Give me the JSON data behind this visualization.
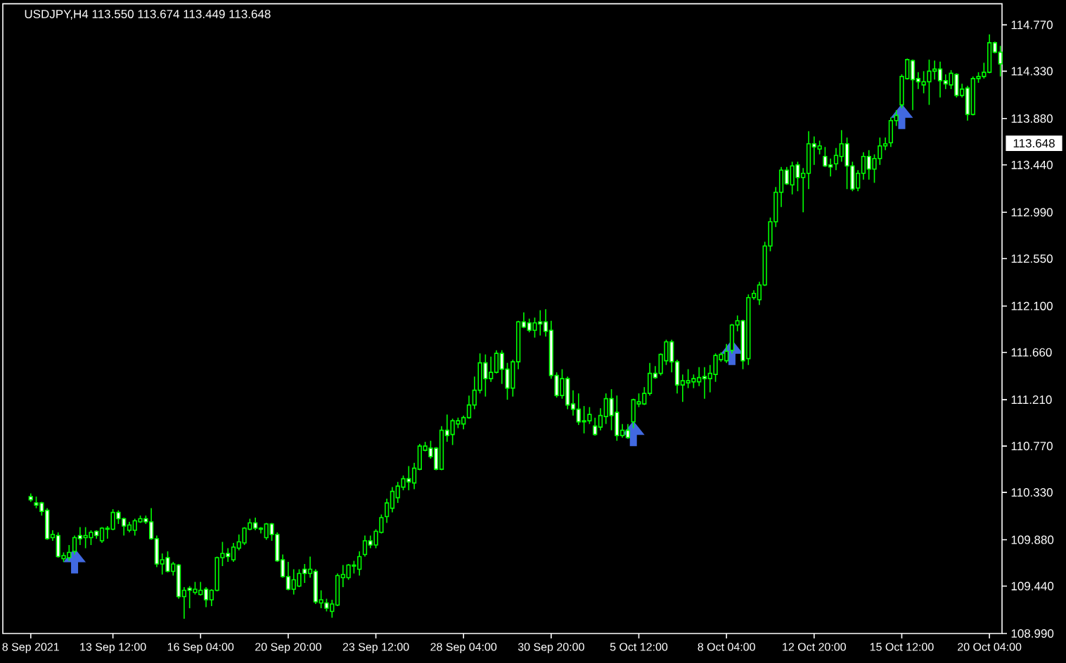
{
  "chart_data": {
    "type": "candlestick",
    "title": "USDJPY,H4 113.550 113.674 113.449 113.648",
    "color": "#00ff00",
    "categories": [
      "8 Sep 2021",
      null,
      null,
      null,
      null,
      null,
      null,
      null,
      null,
      null,
      null,
      null,
      null,
      null,
      null,
      "13 Sep 12:00",
      null,
      null,
      null,
      null,
      null,
      null,
      null,
      null,
      null,
      null,
      null,
      null,
      null,
      null,
      null,
      "16 Sep 04:00",
      null,
      null,
      null,
      null,
      null,
      null,
      null,
      null,
      null,
      null,
      null,
      null,
      null,
      null,
      null,
      "20 Sep 20:00",
      null,
      null,
      null,
      null,
      null,
      null,
      null,
      null,
      null,
      null,
      null,
      null,
      null,
      null,
      null,
      "23 Sep 12:00",
      null,
      null,
      null,
      null,
      null,
      null,
      null,
      null,
      null,
      null,
      null,
      null,
      null,
      null,
      null,
      "28 Sep 04:00",
      null,
      null,
      null,
      null,
      null,
      null,
      null,
      null,
      null,
      null,
      null,
      null,
      null,
      null,
      null,
      "30 Sep 20:00",
      null,
      null,
      null,
      null,
      null,
      null,
      null,
      null,
      null,
      null,
      null,
      null,
      null,
      null,
      null,
      "5 Oct 12:00",
      null,
      null,
      null,
      null,
      null,
      null,
      null,
      null,
      null,
      null,
      null,
      null,
      null,
      null,
      null,
      "8 Oct 04:00",
      null,
      null,
      null,
      null,
      null,
      null,
      null,
      null,
      null,
      null,
      null,
      null,
      null,
      null,
      null,
      "12 Oct 20:00",
      null,
      null,
      null,
      null,
      null,
      null,
      null,
      null,
      null,
      null,
      null,
      null,
      null,
      null,
      null,
      "15 Oct 12:00",
      null,
      null,
      null,
      null,
      null,
      null,
      null,
      null,
      null,
      null,
      null,
      null,
      null,
      null,
      null,
      "20 Oct 04:00",
      null,
      null
    ],
    "ohlc": [
      [
        110.29,
        110.32,
        110.24,
        110.26
      ],
      [
        110.23,
        110.29,
        110.18,
        110.21
      ],
      [
        110.23,
        110.24,
        110.11,
        110.15
      ],
      [
        110.16,
        110.18,
        109.88,
        109.89
      ],
      [
        109.9,
        109.97,
        109.87,
        109.93
      ],
      [
        109.92,
        109.95,
        109.71,
        109.72
      ],
      [
        109.7,
        109.76,
        109.67,
        109.73
      ],
      [
        109.71,
        109.83,
        109.68,
        109.76
      ],
      [
        109.77,
        109.92,
        109.74,
        109.9
      ],
      [
        109.92,
        110.0,
        109.83,
        109.89
      ],
      [
        109.9,
        110.0,
        109.8,
        109.92
      ],
      [
        109.9,
        109.97,
        109.83,
        109.95
      ],
      [
        109.96,
        109.97,
        109.89,
        109.92
      ],
      [
        109.87,
        110.0,
        109.85,
        109.99
      ],
      [
        109.98,
        110.01,
        109.89,
        109.99
      ],
      [
        109.98,
        110.17,
        109.97,
        110.14
      ],
      [
        110.14,
        110.16,
        110.03,
        110.08
      ],
      [
        110.08,
        110.09,
        109.92,
        110.01
      ],
      [
        109.97,
        110.05,
        109.95,
        110.02
      ],
      [
        109.97,
        110.08,
        109.92,
        110.06
      ],
      [
        110.05,
        110.11,
        110.04,
        110.08
      ],
      [
        110.08,
        110.11,
        110.03,
        110.05
      ],
      [
        110.05,
        110.18,
        109.88,
        109.89
      ],
      [
        109.89,
        109.92,
        109.62,
        109.65
      ],
      [
        109.65,
        109.75,
        109.55,
        109.69
      ],
      [
        109.71,
        109.77,
        109.57,
        109.58
      ],
      [
        109.58,
        109.67,
        109.54,
        109.65
      ],
      [
        109.64,
        109.65,
        109.32,
        109.34
      ],
      [
        109.34,
        109.43,
        109.13,
        109.4
      ],
      [
        109.42,
        109.44,
        109.23,
        109.4
      ],
      [
        109.38,
        109.48,
        109.36,
        109.41
      ],
      [
        109.36,
        109.48,
        109.35,
        109.4
      ],
      [
        109.41,
        109.43,
        109.24,
        109.31
      ],
      [
        109.31,
        109.41,
        109.25,
        109.4
      ],
      [
        109.4,
        109.72,
        109.39,
        109.71
      ],
      [
        109.71,
        109.86,
        109.63,
        109.75
      ],
      [
        109.75,
        109.8,
        109.67,
        109.72
      ],
      [
        109.69,
        109.85,
        109.67,
        109.81
      ],
      [
        109.8,
        109.93,
        109.78,
        109.86
      ],
      [
        109.85,
        110.0,
        109.83,
        109.99
      ],
      [
        109.98,
        110.08,
        109.97,
        110.04
      ],
      [
        110.04,
        110.09,
        109.97,
        109.99
      ],
      [
        109.98,
        110.0,
        109.94,
        109.99
      ],
      [
        109.9,
        110.04,
        109.88,
        110.03
      ],
      [
        110.03,
        110.04,
        109.87,
        109.93
      ],
      [
        109.93,
        109.95,
        109.67,
        109.68
      ],
      [
        109.69,
        109.74,
        109.52,
        109.53
      ],
      [
        109.53,
        109.67,
        109.4,
        109.41
      ],
      [
        109.41,
        109.6,
        109.36,
        109.5
      ],
      [
        109.44,
        109.6,
        109.43,
        109.56
      ],
      [
        109.6,
        109.65,
        109.47,
        109.56
      ],
      [
        109.56,
        109.72,
        109.52,
        109.6
      ],
      [
        109.58,
        109.6,
        109.27,
        109.29
      ],
      [
        109.28,
        109.4,
        109.23,
        109.31
      ],
      [
        109.28,
        109.32,
        109.2,
        109.23
      ],
      [
        109.2,
        109.31,
        109.14,
        109.27
      ],
      [
        109.26,
        109.56,
        109.25,
        109.54
      ],
      [
        109.52,
        109.64,
        109.43,
        109.55
      ],
      [
        109.52,
        109.65,
        109.5,
        109.64
      ],
      [
        109.63,
        109.68,
        109.56,
        109.64
      ],
      [
        109.6,
        109.77,
        109.54,
        109.72
      ],
      [
        109.74,
        109.92,
        109.72,
        109.87
      ],
      [
        109.87,
        109.92,
        109.8,
        109.83
      ],
      [
        109.83,
        109.98,
        109.8,
        109.96
      ],
      [
        109.95,
        110.12,
        109.94,
        110.09
      ],
      [
        110.1,
        110.27,
        110.04,
        110.23
      ],
      [
        110.18,
        110.38,
        110.14,
        110.34
      ],
      [
        110.28,
        110.43,
        110.23,
        110.39
      ],
      [
        110.38,
        110.49,
        110.35,
        110.46
      ],
      [
        110.46,
        110.58,
        110.35,
        110.43
      ],
      [
        110.42,
        110.61,
        110.36,
        110.56
      ],
      [
        110.55,
        110.79,
        110.54,
        110.77
      ],
      [
        110.73,
        110.81,
        110.72,
        110.77
      ],
      [
        110.75,
        110.82,
        110.65,
        110.67
      ],
      [
        110.75,
        110.76,
        110.54,
        110.55
      ],
      [
        110.55,
        110.96,
        110.54,
        110.92
      ],
      [
        110.92,
        111.07,
        110.81,
        110.87
      ],
      [
        110.88,
        111.03,
        110.78,
        111.01
      ],
      [
        110.98,
        111.04,
        110.94,
        111.01
      ],
      [
        110.98,
        111.06,
        110.93,
        111.04
      ],
      [
        111.04,
        111.25,
        111.03,
        111.16
      ],
      [
        111.16,
        111.43,
        111.12,
        111.3
      ],
      [
        111.3,
        111.65,
        111.27,
        111.56
      ],
      [
        111.56,
        111.64,
        111.24,
        111.41
      ],
      [
        111.41,
        111.62,
        111.38,
        111.47
      ],
      [
        111.47,
        111.68,
        111.46,
        111.65
      ],
      [
        111.65,
        111.68,
        111.36,
        111.5
      ],
      [
        111.5,
        111.56,
        111.21,
        111.32
      ],
      [
        111.32,
        111.59,
        111.24,
        111.57
      ],
      [
        111.57,
        111.96,
        111.5,
        111.95
      ],
      [
        111.95,
        112.04,
        111.89,
        111.9
      ],
      [
        111.94,
        111.98,
        111.85,
        111.87
      ],
      [
        111.87,
        111.99,
        111.8,
        111.94
      ],
      [
        111.95,
        112.06,
        111.82,
        111.93
      ],
      [
        111.95,
        112.07,
        111.81,
        111.86
      ],
      [
        111.87,
        111.96,
        111.41,
        111.44
      ],
      [
        111.44,
        111.47,
        111.23,
        111.25
      ],
      [
        111.25,
        111.5,
        111.22,
        111.41
      ],
      [
        111.41,
        111.43,
        111.12,
        111.16
      ],
      [
        111.17,
        111.3,
        111.06,
        111.12
      ],
      [
        111.12,
        111.27,
        110.97,
        111.0
      ],
      [
        111.0,
        111.15,
        110.89,
        111.01
      ],
      [
        111.01,
        111.14,
        110.98,
        111.07
      ],
      [
        110.96,
        111.04,
        110.87,
        110.88
      ],
      [
        110.95,
        111.13,
        110.92,
        111.06
      ],
      [
        111.05,
        111.27,
        110.98,
        111.22
      ],
      [
        111.22,
        111.31,
        110.92,
        111.06
      ],
      [
        111.09,
        111.25,
        110.82,
        110.87
      ],
      [
        110.87,
        110.98,
        110.85,
        110.92
      ],
      [
        110.92,
        110.98,
        110.84,
        110.85
      ],
      [
        111.0,
        111.22,
        110.94,
        111.21
      ],
      [
        111.17,
        111.27,
        111.14,
        111.19
      ],
      [
        111.17,
        111.33,
        111.16,
        111.27
      ],
      [
        111.27,
        111.56,
        111.25,
        111.46
      ],
      [
        111.46,
        111.53,
        111.41,
        111.42
      ],
      [
        111.46,
        111.65,
        111.44,
        111.64
      ],
      [
        111.58,
        111.78,
        111.54,
        111.76
      ],
      [
        111.76,
        111.78,
        111.47,
        111.57
      ],
      [
        111.57,
        111.59,
        111.27,
        111.35
      ],
      [
        111.35,
        111.45,
        111.19,
        111.39
      ],
      [
        111.37,
        111.5,
        111.32,
        111.39
      ],
      [
        111.38,
        111.45,
        111.32,
        111.41
      ],
      [
        111.38,
        111.52,
        111.34,
        111.42
      ],
      [
        111.43,
        111.52,
        111.22,
        111.41
      ],
      [
        111.41,
        111.54,
        111.28,
        111.46
      ],
      [
        111.45,
        111.65,
        111.38,
        111.63
      ],
      [
        111.59,
        111.66,
        111.57,
        111.64
      ],
      [
        111.58,
        111.74,
        111.56,
        111.67
      ],
      [
        111.68,
        111.93,
        111.65,
        111.92
      ],
      [
        111.92,
        112.01,
        111.86,
        111.96
      ],
      [
        111.96,
        111.97,
        111.5,
        111.58
      ],
      [
        111.6,
        112.21,
        111.54,
        112.18
      ],
      [
        112.18,
        112.25,
        112.16,
        112.22
      ],
      [
        112.16,
        112.33,
        112.11,
        112.3
      ],
      [
        112.3,
        112.71,
        112.29,
        112.67
      ],
      [
        112.67,
        112.94,
        112.62,
        112.9
      ],
      [
        112.9,
        113.23,
        112.85,
        113.18
      ],
      [
        113.18,
        113.42,
        113.04,
        113.39
      ],
      [
        113.39,
        113.42,
        113.25,
        113.26
      ],
      [
        113.25,
        113.47,
        113.16,
        113.43
      ],
      [
        113.44,
        113.47,
        113.19,
        113.32
      ],
      [
        113.32,
        113.41,
        112.99,
        113.36
      ],
      [
        113.36,
        113.76,
        113.21,
        113.64
      ],
      [
        113.64,
        113.71,
        113.44,
        113.61
      ],
      [
        113.59,
        113.67,
        113.54,
        113.62
      ],
      [
        113.52,
        113.61,
        113.42,
        113.43
      ],
      [
        113.44,
        113.5,
        113.33,
        113.42
      ],
      [
        113.45,
        113.6,
        113.39,
        113.53
      ],
      [
        113.52,
        113.77,
        113.47,
        113.64
      ],
      [
        113.64,
        113.7,
        113.21,
        113.43
      ],
      [
        113.43,
        113.47,
        113.19,
        113.21
      ],
      [
        113.22,
        113.39,
        113.19,
        113.36
      ],
      [
        113.36,
        113.56,
        113.3,
        113.52
      ],
      [
        113.52,
        113.58,
        113.3,
        113.4
      ],
      [
        113.4,
        113.54,
        113.27,
        113.5
      ],
      [
        113.5,
        113.7,
        113.44,
        113.62
      ],
      [
        113.62,
        113.7,
        113.58,
        113.64
      ],
      [
        113.65,
        113.89,
        113.61,
        113.86
      ],
      [
        113.86,
        113.96,
        113.81,
        113.91
      ],
      [
        114.01,
        114.3,
        113.98,
        114.28
      ],
      [
        114.26,
        114.45,
        114.25,
        114.44
      ],
      [
        114.43,
        114.44,
        113.96,
        114.25
      ],
      [
        114.26,
        114.32,
        114.16,
        114.23
      ],
      [
        114.2,
        114.33,
        114.12,
        114.23
      ],
      [
        114.23,
        114.44,
        114.01,
        114.33
      ],
      [
        114.33,
        114.43,
        114.25,
        114.35
      ],
      [
        114.35,
        114.42,
        114.08,
        114.24
      ],
      [
        114.24,
        114.3,
        114.16,
        114.21
      ],
      [
        114.2,
        114.34,
        114.16,
        114.31
      ],
      [
        114.3,
        114.31,
        114.08,
        114.1
      ],
      [
        114.1,
        114.21,
        114.08,
        114.16
      ],
      [
        114.17,
        114.19,
        113.86,
        113.92
      ],
      [
        113.92,
        114.28,
        113.91,
        114.26
      ],
      [
        114.26,
        114.32,
        114.22,
        114.28
      ],
      [
        114.28,
        114.41,
        114.26,
        114.32
      ],
      [
        114.32,
        114.68,
        114.31,
        114.6
      ],
      [
        114.6,
        114.61,
        114.5,
        114.51
      ],
      [
        114.51,
        114.57,
        114.28,
        114.4
      ]
    ],
    "series": [
      {
        "type": "scatter",
        "color": "#4169e1",
        "marker": "triangle",
        "values": [
          null,
          null,
          null,
          null,
          null,
          null,
          null,
          null,
          109.68,
          null,
          null,
          null,
          null,
          null,
          null,
          null,
          null,
          null,
          null,
          null,
          null,
          null,
          null,
          null,
          null,
          null,
          null,
          null,
          null,
          null,
          null,
          null,
          null,
          null,
          null,
          null,
          null,
          null,
          null,
          null,
          null,
          null,
          null,
          null,
          null,
          null,
          null,
          null,
          null,
          null,
          null,
          null,
          null,
          null,
          null,
          null,
          null,
          null,
          null,
          null,
          null,
          null,
          null,
          null,
          null,
          null,
          null,
          null,
          null,
          null,
          null,
          null,
          null,
          null,
          null,
          null,
          null,
          null,
          null,
          null,
          null,
          null,
          null,
          null,
          null,
          null,
          null,
          null,
          null,
          null,
          null,
          null,
          null,
          null,
          null,
          null,
          null,
          null,
          null,
          null,
          null,
          null,
          null,
          null,
          null,
          null,
          null,
          null,
          null,
          null,
          110.89,
          null,
          null,
          null,
          null,
          null,
          null,
          null,
          null,
          null,
          null,
          null,
          null,
          null,
          null,
          null,
          null,
          null,
          111.66,
          null,
          null,
          null,
          null,
          null,
          null,
          null,
          null,
          null,
          null,
          null,
          null,
          null,
          null,
          null,
          null,
          null,
          null,
          null,
          null,
          null,
          null,
          null,
          null,
          null,
          null,
          null,
          null,
          null,
          null,
          113.9,
          null,
          null,
          null,
          null,
          null,
          null,
          null,
          null,
          null,
          null,
          null,
          null,
          null,
          null,
          null,
          null,
          null,
          null
        ]
      }
    ],
    "ylim": [
      108.99,
      114.97
    ],
    "yticks": [
      {
        "value": 108.99,
        "label": "108.990"
      },
      {
        "value": 109.44,
        "label": "109.440"
      },
      {
        "value": 109.88,
        "label": "109.880"
      },
      {
        "value": 110.33,
        "label": "110.330"
      },
      {
        "value": 110.77,
        "label": "110.770"
      },
      {
        "value": 111.21,
        "label": "111.210"
      },
      {
        "value": 111.66,
        "label": "111.660"
      },
      {
        "value": 112.1,
        "label": "112.100"
      },
      {
        "value": 112.55,
        "label": "112.550"
      },
      {
        "value": 112.99,
        "label": "112.990"
      },
      {
        "value": 113.44,
        "label": "113.440"
      },
      {
        "value": 113.88,
        "label": "113.880"
      },
      {
        "value": 114.33,
        "label": "114.330"
      },
      {
        "value": 114.77,
        "label": "114.770"
      }
    ],
    "annotations": [
      "113.648"
    ]
  }
}
